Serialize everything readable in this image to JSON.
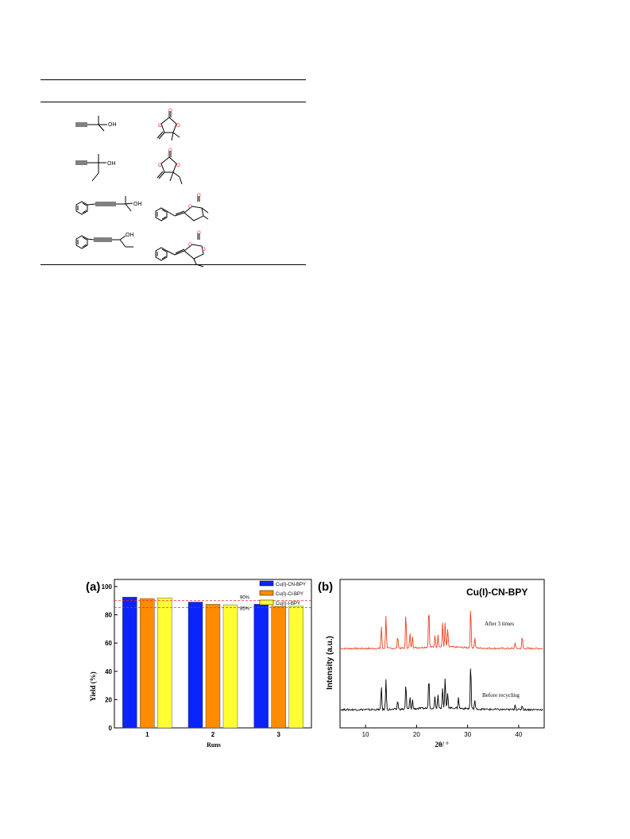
{
  "scheme": {
    "rows": [
      {
        "substrate": "2-methylbut-3-yn-2-ol",
        "product": "4,4-dimethyl-5-methylene-1,3-dioxolan-2-one",
        "oh": "OH"
      },
      {
        "substrate": "3-methylpent-1-yn-3-ol",
        "product": "4-ethyl-4-methyl-5-methylene-1,3-dioxolan-2-one",
        "oh": "OH"
      },
      {
        "substrate": "2-methyl-4-phenylbut-3-yn-2-ol",
        "product": "5-benzylidene-4,4-dimethyl-1,3-dioxolan-2-one",
        "oh": "OH"
      },
      {
        "substrate": "1-phenylpent-1-yn-3-ol",
        "product": "5-benzylidene-4-ethyl-1,3-dioxolan-2-one",
        "oh": "OH"
      }
    ],
    "atom_o": "O",
    "colors": {
      "oxygen": "#e8251f",
      "bond": "#000000"
    }
  },
  "figure_a": {
    "panel_label": "(a)",
    "legend": [
      "Cu(I)-CN-BPY",
      "Cu(I)-Cl-BPY",
      "Cu(I)-I-BPY"
    ],
    "ref_lines": [
      {
        "value": 90,
        "label": "90%"
      },
      {
        "value": 85,
        "label": "85%"
      }
    ],
    "yticks": [
      "0",
      "20",
      "40",
      "60",
      "80",
      "100"
    ],
    "colors": {
      "cn": "#0b24fb",
      "cl": "#ff8c00",
      "i": "#ffff33",
      "ref": "#e8251f"
    }
  },
  "figure_b": {
    "panel_label": "(b)",
    "title": "Cu(I)-CN-BPY",
    "ylabel": "Intensity (a.u.)",
    "xlabel": "2θ/ °",
    "xticks": [
      "10",
      "20",
      "30",
      "40"
    ],
    "trace_labels": [
      "After 3 times",
      "Before recycling"
    ],
    "colors": {
      "after": "#f0401f",
      "before": "#000000"
    }
  },
  "chart_data": [
    {
      "type": "bar",
      "title": "",
      "xlabel": "Runs",
      "ylabel": "Yield (%)",
      "categories": [
        "1",
        "2",
        "3"
      ],
      "ylim": [
        0,
        105
      ],
      "series": [
        {
          "name": "Cu(I)-CN-BPY",
          "values": [
            92.5,
            89,
            87.5
          ]
        },
        {
          "name": "Cu(I)-Cl-BPY",
          "values": [
            91.5,
            87.5,
            86
          ]
        },
        {
          "name": "Cu(I)-I-BPY",
          "values": [
            92,
            87,
            86
          ]
        }
      ],
      "reference_lines": [
        90,
        85
      ],
      "legend_position": "top-right",
      "grid": false
    },
    {
      "type": "line",
      "title": "Cu(I)-CN-BPY",
      "xlabel": "2θ/ °",
      "ylabel": "Intensity (a.u.)",
      "xlim": [
        5,
        45
      ],
      "series": [
        {
          "name": "After 3 times",
          "peaks": [
            [
              13.1,
              0.55
            ],
            [
              14.0,
              0.8
            ],
            [
              16.3,
              0.3
            ],
            [
              17.9,
              0.85
            ],
            [
              18.7,
              0.35
            ],
            [
              19.2,
              0.3
            ],
            [
              22.4,
              1.0
            ],
            [
              23.6,
              0.3
            ],
            [
              24.2,
              0.3
            ],
            [
              25.1,
              0.6
            ],
            [
              25.6,
              0.6
            ],
            [
              26.1,
              0.45
            ],
            [
              30.6,
              1.0
            ],
            [
              31.4,
              0.25
            ],
            [
              39.3,
              0.15
            ],
            [
              40.7,
              0.3
            ]
          ]
        },
        {
          "name": "Before recycling",
          "peaks": [
            [
              13.1,
              0.5
            ],
            [
              14.0,
              0.65
            ],
            [
              16.3,
              0.2
            ],
            [
              17.9,
              0.55
            ],
            [
              18.7,
              0.25
            ],
            [
              19.2,
              0.2
            ],
            [
              22.4,
              0.7
            ],
            [
              23.6,
              0.25
            ],
            [
              24.2,
              0.3
            ],
            [
              25.1,
              0.45
            ],
            [
              25.6,
              0.65
            ],
            [
              26.1,
              0.35
            ],
            [
              28.2,
              0.25
            ],
            [
              30.6,
              1.0
            ],
            [
              31.4,
              0.2
            ],
            [
              39.3,
              0.12
            ],
            [
              40.7,
              0.1
            ]
          ]
        }
      ],
      "grid": false
    }
  ]
}
